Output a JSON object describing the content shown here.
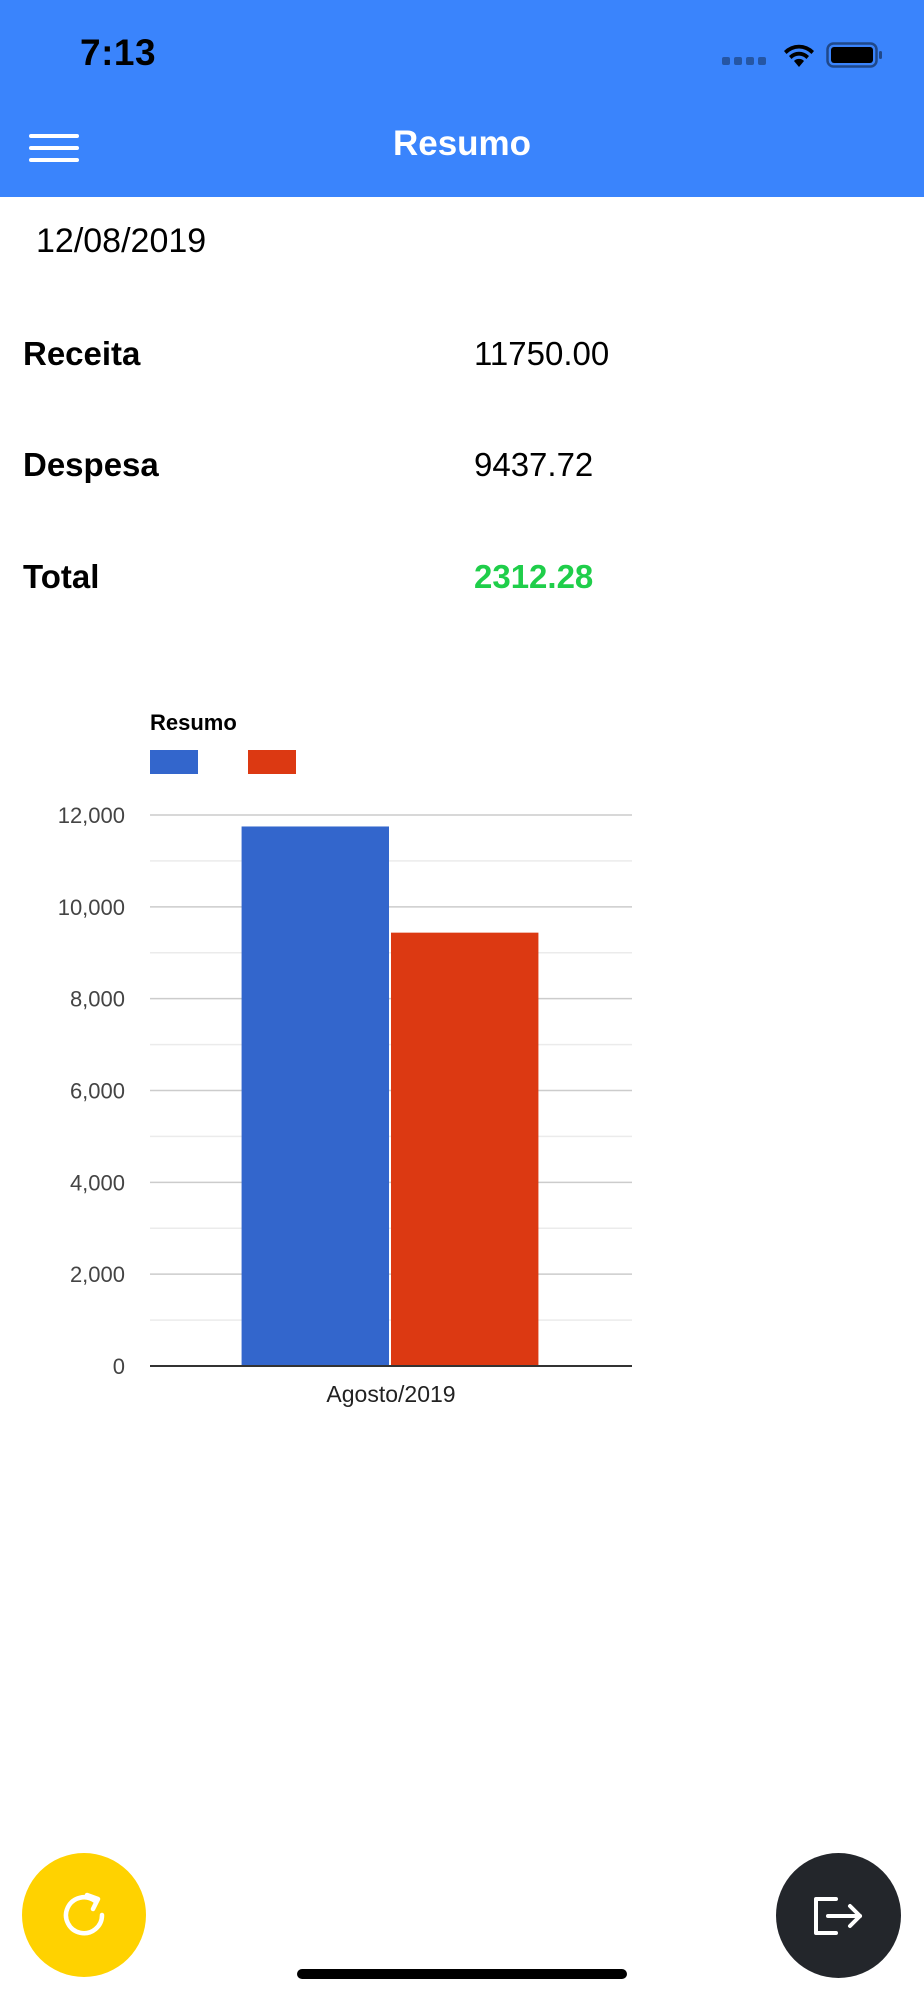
{
  "status_bar": {
    "time": "7:13"
  },
  "header": {
    "title": "Resumo",
    "background_color": "#3a84fc"
  },
  "summary": {
    "date": "12/08/2019",
    "rows": [
      {
        "label": "Receita",
        "value": "11750.00"
      },
      {
        "label": "Despesa",
        "value": "9437.72"
      },
      {
        "label": "Total",
        "value": "2312.28",
        "color": "#1fce4a"
      }
    ]
  },
  "chart_data": {
    "type": "bar",
    "title": "Resumo",
    "categories": [
      "Agosto/2019"
    ],
    "series": [
      {
        "values": [
          11750.0
        ],
        "color": "#3366cc"
      },
      {
        "values": [
          9437.72
        ],
        "color": "#dc3912"
      }
    ],
    "ylim": [
      0,
      12000
    ],
    "yticks": [
      0,
      2000,
      4000,
      6000,
      8000,
      10000,
      12000
    ],
    "ytick_labels": [
      "0",
      "2,000",
      "4,000",
      "6,000",
      "8,000",
      "10,000",
      "12,000"
    ],
    "grid": true,
    "legend": "top-left"
  },
  "buttons": {
    "refresh": {
      "icon": "refresh-icon",
      "color": "#ffd200"
    },
    "logout": {
      "icon": "logout-icon",
      "color": "#23262b"
    }
  }
}
